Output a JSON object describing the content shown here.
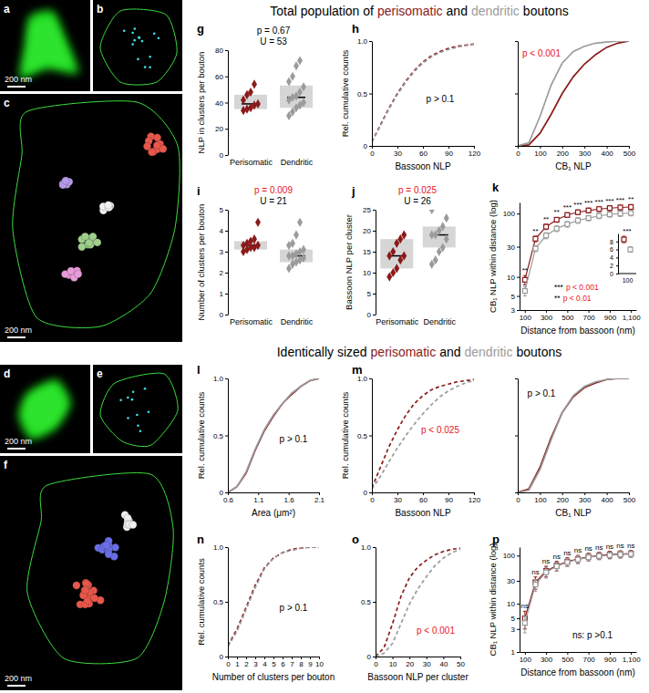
{
  "headings": [
    {
      "segments": [
        {
          "text": "Total population of",
          "color": "#000000"
        },
        {
          "text": "perisomatic",
          "color": "#8b1a1a"
        },
        {
          "text": "and",
          "color": "#000000"
        },
        {
          "text": "dendritic",
          "color": "#9b9b9b"
        },
        {
          "text": "boutons",
          "color": "#000000"
        }
      ]
    },
    {
      "segments": [
        {
          "text": "Identically sized",
          "color": "#000000"
        },
        {
          "text": "perisomatic",
          "color": "#8b1a1a"
        },
        {
          "text": "and",
          "color": "#000000"
        },
        {
          "text": "dendritic",
          "color": "#9b9b9b"
        },
        {
          "text": "boutons",
          "color": "#000000"
        }
      ]
    }
  ],
  "images": [
    {
      "panel_label": "a",
      "scale_bar": "200 nm"
    },
    {
      "panel_label": "b"
    },
    {
      "panel_label": "c",
      "scale_bar": "200 nm"
    },
    {
      "panel_label": "d",
      "scale_bar": "200 nm"
    },
    {
      "panel_label": "e"
    },
    {
      "panel_label": "f",
      "scale_bar": "200 nm"
    }
  ],
  "chart_data": [
    {
      "type": "strip",
      "panel_label": "g",
      "y_label": "NLP in clusters per bouton",
      "categories": [
        "Perisomatic",
        "Dendritic"
      ],
      "colors": [
        "#8b1a1a",
        "#9b9b9b"
      ],
      "values": [
        [
          34,
          35,
          36,
          38,
          39,
          42,
          46,
          48,
          54
        ],
        [
          30,
          33,
          36,
          38,
          40,
          42,
          44,
          45,
          48,
          52,
          56,
          60,
          68,
          72
        ]
      ],
      "medians": [
        39,
        44
      ],
      "iqr": [
        [
          35,
          46
        ],
        [
          36,
          53
        ]
      ],
      "ylim": [
        0,
        80
      ],
      "yticks": [
        0,
        20,
        40,
        60,
        80
      ],
      "annotations": [
        {
          "text": "p = 0.67",
          "color": "#000000"
        },
        {
          "text": "U = 53",
          "color": "#000000"
        }
      ]
    },
    {
      "type": "line",
      "panel_label": "h",
      "x_label": "Bassoon NLP",
      "y_label": "Rel. cumulative counts",
      "x": [
        0,
        10,
        20,
        30,
        40,
        50,
        60,
        70,
        80,
        90,
        100,
        110,
        120
      ],
      "xlim": [
        0,
        120
      ],
      "xticks": [
        0,
        30,
        60,
        90,
        120
      ],
      "ylim": [
        0,
        1
      ],
      "yticks": [
        0,
        0.5,
        {
          "value": 1,
          "label": "1.0"
        }
      ],
      "series": [
        {
          "color": "#8b1a1a",
          "line_style": "dashed",
          "values": [
            0.04,
            0.2,
            0.36,
            0.5,
            0.62,
            0.72,
            0.8,
            0.86,
            0.9,
            0.93,
            0.95,
            0.96,
            0.97
          ]
        },
        {
          "color": "#9b9b9b",
          "line_style": "dashed",
          "values": [
            0.04,
            0.19,
            0.35,
            0.49,
            0.61,
            0.71,
            0.79,
            0.85,
            0.89,
            0.92,
            0.94,
            0.96,
            0.97
          ]
        }
      ],
      "annotations": [
        {
          "text": "p > 0.1",
          "color": "#000000"
        }
      ]
    },
    {
      "type": "line",
      "x_label": "CB₁ NLP",
      "tick_labels": "x",
      "x": [
        0,
        50,
        100,
        150,
        200,
        250,
        300,
        350,
        400,
        450,
        500
      ],
      "xlim": [
        0,
        500
      ],
      "xticks": [
        0,
        100,
        200,
        300,
        400,
        500
      ],
      "ylim": [
        0,
        1
      ],
      "yticks": [
        0,
        0.5,
        {
          "value": 1,
          "label": "1.0"
        }
      ],
      "series": [
        {
          "color": "#8b1a1a",
          "line_style": "solid",
          "values": [
            0,
            0.01,
            0.12,
            0.3,
            0.5,
            0.66,
            0.78,
            0.87,
            0.94,
            0.98,
            1
          ]
        },
        {
          "color": "#9b9b9b",
          "line_style": "solid",
          "values": [
            0,
            0.03,
            0.28,
            0.58,
            0.79,
            0.9,
            0.95,
            0.98,
            0.99,
            1,
            1
          ]
        }
      ],
      "annotations": [
        {
          "text": "p < 0.001",
          "color": "#e8141c"
        }
      ]
    },
    {
      "type": "strip",
      "panel_label": "i",
      "y_label": "Number of clusters per bouton",
      "categories": [
        "Perisomatic",
        "Dendritic"
      ],
      "colors": [
        "#8b1a1a",
        "#9b9b9b"
      ],
      "values": [
        [
          3.0,
          3.1,
          3.2,
          3.2,
          3.3,
          3.3,
          3.4,
          3.5,
          3.6,
          4.4
        ],
        [
          2.2,
          2.4,
          2.5,
          2.6,
          2.7,
          2.8,
          2.8,
          2.9,
          3.0,
          3.1,
          3.3,
          3.4,
          3.8,
          4.4
        ]
      ],
      "medians": [
        3.3,
        2.8
      ],
      "iqr": [
        [
          3.1,
          3.5
        ],
        [
          2.5,
          3.1
        ]
      ],
      "ylim": [
        0,
        5
      ],
      "yticks": [
        0,
        1,
        2,
        3,
        4,
        5
      ],
      "annotations": [
        {
          "text": "p = 0.009",
          "color": "#e8141c"
        },
        {
          "text": "U = 21",
          "color": "#000000"
        }
      ]
    },
    {
      "type": "strip",
      "panel_label": "j",
      "y_label": "Bassoon NLP per cluster",
      "categories": [
        "Perisomatic",
        "Dendritic"
      ],
      "colors": [
        "#8b1a1a",
        "#9b9b9b"
      ],
      "values": [
        [
          9,
          10,
          11,
          13,
          14,
          14,
          15,
          17,
          18,
          19
        ],
        [
          12,
          13,
          15,
          16,
          18,
          19,
          19,
          20,
          21,
          23,
          25
        ]
      ],
      "medians": [
        14,
        19
      ],
      "iqr": [
        [
          11,
          18
        ],
        [
          16,
          21
        ]
      ],
      "ylim": [
        0,
        25
      ],
      "yticks": [
        0,
        5,
        10,
        15,
        20,
        25
      ],
      "annotations": [
        {
          "text": "p = 0.025",
          "color": "#e8141c"
        },
        {
          "text": "U = 26",
          "color": "#000000"
        }
      ]
    },
    {
      "type": "line",
      "panel_label": "k",
      "log": "y",
      "x_label": "Distance from bassoon (nm)",
      "y_label": "CB₁ NLP within distance (log)",
      "x": [
        100,
        200,
        300,
        400,
        500,
        600,
        700,
        800,
        900,
        1000,
        1100
      ],
      "xlim": [
        50,
        1150
      ],
      "xticks": [
        100,
        300,
        500,
        700,
        900,
        {
          "value": 1100,
          "label": "1,100"
        }
      ],
      "ylim": [
        3,
        150
      ],
      "yticks": [
        3,
        5,
        10,
        30,
        100
      ],
      "series": [
        {
          "color": "#8b1a1a",
          "marker": "square",
          "line_style": "solid",
          "values": [
            9,
            40,
            62,
            80,
            95,
            105,
            112,
            118,
            122,
            125,
            127
          ],
          "errors": [
            1.5,
            4,
            6,
            7,
            8,
            9,
            10,
            10,
            11,
            11,
            12
          ]
        },
        {
          "color": "#9b9b9b",
          "marker": "square",
          "line_style": "solid",
          "values": [
            6,
            28,
            45,
            58,
            68,
            78,
            85,
            92,
            97,
            100,
            102
          ],
          "errors": [
            1,
            3,
            5,
            6,
            7,
            8,
            8,
            9,
            9,
            10,
            10
          ]
        }
      ],
      "significance": [
        "**",
        "**",
        "**",
        "**",
        "***",
        "***",
        "***",
        "***",
        "***",
        "***",
        "**"
      ],
      "significance_key": [
        {
          "stars": "***",
          "text": "p < 0.001",
          "color": "#e8141c"
        },
        {
          "stars": "**",
          "text": "p < 0.01",
          "color": "#e8141c"
        }
      ]
    },
    {
      "type": "errorbar",
      "categories": [
        "100"
      ],
      "ylim": [
        0,
        10
      ],
      "yticks": [
        0,
        2,
        4,
        6,
        8
      ],
      "series": [
        {
          "color": "#8b1a1a",
          "marker": "square",
          "values": [
            8.5
          ],
          "errors": [
            0.8
          ]
        },
        {
          "color": "#9b9b9b",
          "marker": "square",
          "values": [
            6
          ],
          "errors": [
            0.7
          ]
        }
      ],
      "significance": [
        "***"
      ]
    },
    {
      "type": "line",
      "panel_label": "l",
      "x_label": "Area (μm²)",
      "y_label": "Rel. cumulative counts",
      "x": [
        0.6,
        0.75,
        0.9,
        1.05,
        1.2,
        1.35,
        1.5,
        1.65,
        1.8,
        1.95,
        2.1
      ],
      "xlim": [
        0.6,
        2.1
      ],
      "xticks": [
        0.6,
        1.1,
        1.6,
        2.1
      ],
      "ylim": [
        0,
        1
      ],
      "yticks": [
        0,
        0.5,
        {
          "value": 1,
          "label": "1.0"
        }
      ],
      "series": [
        {
          "color": "#8b1a1a",
          "line_style": "solid",
          "values": [
            0,
            0.05,
            0.17,
            0.37,
            0.54,
            0.67,
            0.78,
            0.86,
            0.93,
            0.98,
            1
          ]
        },
        {
          "color": "#9b9b9b",
          "line_style": "solid",
          "values": [
            0,
            0.05,
            0.18,
            0.38,
            0.55,
            0.68,
            0.78,
            0.87,
            0.93,
            0.98,
            1
          ]
        }
      ],
      "annotations": [
        {
          "text": "p > 0.1",
          "color": "#000000"
        }
      ]
    },
    {
      "type": "line",
      "panel_label": "m",
      "x_label": "Bassoon NLP",
      "y_label": "Rel. cumulative counts",
      "x": [
        0,
        10,
        20,
        30,
        40,
        50,
        60,
        70,
        80,
        90,
        100,
        110,
        120
      ],
      "xlim": [
        0,
        120
      ],
      "xticks": [
        0,
        30,
        60,
        90,
        120
      ],
      "ylim": [
        0,
        1
      ],
      "yticks": [
        0,
        0.5,
        {
          "value": 1,
          "label": "1.0"
        }
      ],
      "series": [
        {
          "color": "#8b1a1a",
          "line_style": "dashed",
          "values": [
            0.04,
            0.22,
            0.4,
            0.55,
            0.68,
            0.78,
            0.85,
            0.9,
            0.93,
            0.95,
            0.97,
            0.98,
            0.99
          ]
        },
        {
          "color": "#9b9b9b",
          "line_style": "dashed",
          "values": [
            0.03,
            0.14,
            0.27,
            0.39,
            0.5,
            0.6,
            0.69,
            0.77,
            0.84,
            0.89,
            0.93,
            0.96,
            0.98
          ]
        }
      ],
      "annotations": [
        {
          "text": "p < 0.025",
          "color": "#e8141c"
        }
      ]
    },
    {
      "type": "line",
      "x_label": "CB₁ NLP",
      "tick_labels": "x",
      "x": [
        0,
        50,
        100,
        150,
        200,
        250,
        300,
        350,
        400,
        450,
        500
      ],
      "xlim": [
        0,
        500
      ],
      "xticks": [
        0,
        100,
        200,
        300,
        400,
        500
      ],
      "ylim": [
        0,
        1
      ],
      "yticks": [
        0,
        0.5,
        {
          "value": 1,
          "label": "1.0"
        }
      ],
      "series": [
        {
          "color": "#8b1a1a",
          "line_style": "solid",
          "values": [
            0,
            0.03,
            0.22,
            0.48,
            0.7,
            0.84,
            0.92,
            0.96,
            0.99,
            1,
            1
          ]
        },
        {
          "color": "#9b9b9b",
          "line_style": "solid",
          "values": [
            0,
            0.02,
            0.2,
            0.46,
            0.7,
            0.85,
            0.93,
            0.97,
            0.99,
            1,
            1
          ]
        }
      ],
      "annotations": [
        {
          "text": "p > 0.1",
          "color": "#000000"
        }
      ]
    },
    {
      "type": "line",
      "panel_label": "n",
      "x_label": "Number of clusters per bouton",
      "y_label": "Rel. cumulative counts",
      "x": [
        0,
        1,
        2,
        3,
        4,
        5,
        6,
        7,
        8,
        9,
        10
      ],
      "xlim": [
        0,
        10
      ],
      "xticks": [
        0,
        1,
        2,
        3,
        4,
        5,
        6,
        7,
        8,
        9,
        10
      ],
      "ylim": [
        0,
        1
      ],
      "yticks": [
        0,
        0.5,
        {
          "value": 1,
          "label": "1.0"
        }
      ],
      "series": [
        {
          "color": "#8b1a1a",
          "line_style": "dashed",
          "values": [
            0.1,
            0.25,
            0.45,
            0.65,
            0.81,
            0.9,
            0.95,
            0.98,
            0.99,
            1,
            1
          ]
        },
        {
          "color": "#9b9b9b",
          "line_style": "dashed",
          "values": [
            0.09,
            0.23,
            0.43,
            0.63,
            0.8,
            0.9,
            0.95,
            0.97,
            0.99,
            1,
            1
          ]
        }
      ],
      "annotations": [
        {
          "text": "p > 0.1",
          "color": "#000000"
        }
      ]
    },
    {
      "type": "line",
      "panel_label": "o",
      "x_label": "Bassoon NLP per cluster",
      "x": [
        0,
        5,
        10,
        15,
        20,
        25,
        30,
        35,
        40,
        45,
        50
      ],
      "xlim": [
        0,
        50
      ],
      "xticks": [
        0,
        10,
        20,
        30,
        40,
        50
      ],
      "ylim": [
        0,
        1
      ],
      "yticks": [
        0,
        0.5,
        {
          "value": 1,
          "label": "1.0"
        }
      ],
      "series": [
        {
          "color": "#8b1a1a",
          "line_style": "dashed",
          "values": [
            0,
            0.08,
            0.3,
            0.55,
            0.72,
            0.82,
            0.88,
            0.93,
            0.96,
            0.98,
            0.99
          ]
        },
        {
          "color": "#9b9b9b",
          "line_style": "dashed",
          "values": [
            0,
            0.03,
            0.12,
            0.3,
            0.48,
            0.62,
            0.73,
            0.83,
            0.9,
            0.95,
            0.98
          ]
        }
      ],
      "annotations": [
        {
          "text": "p < 0.001",
          "color": "#e8141c"
        }
      ]
    },
    {
      "type": "line",
      "panel_label": "p",
      "log": "y",
      "x_label": "Distance from bassoon (nm)",
      "y_label": "CB₁ NLP within distance (log)",
      "x": [
        100,
        200,
        300,
        400,
        500,
        600,
        700,
        800,
        900,
        1000,
        1100
      ],
      "xlim": [
        50,
        1150
      ],
      "xticks": [
        100,
        300,
        500,
        700,
        900,
        {
          "value": 1100,
          "label": "1,100"
        }
      ],
      "ylim": [
        1,
        150
      ],
      "yticks": [
        1,
        3,
        5,
        10,
        30,
        100
      ],
      "series": [
        {
          "color": "#8b1a1a",
          "marker": "square",
          "line_style": "solid",
          "values": [
            5,
            28,
            48,
            62,
            75,
            85,
            95,
            100,
            105,
            108,
            110
          ],
          "errors": [
            2,
            8,
            12,
            14,
            15,
            16,
            17,
            17,
            18,
            18,
            18
          ]
        },
        {
          "color": "#9b9b9b",
          "marker": "square",
          "line_style": "solid",
          "values": [
            4,
            25,
            45,
            60,
            73,
            83,
            92,
            98,
            102,
            105,
            108
          ],
          "errors": [
            1.5,
            7,
            11,
            13,
            14,
            15,
            16,
            16,
            17,
            17,
            17
          ]
        }
      ],
      "significance": [
        "ns",
        "ns",
        "ns",
        "ns",
        "ns",
        "ns",
        "ns",
        "ns",
        "ns",
        "ns",
        "ns"
      ],
      "annotations": [
        {
          "text": "ns: p >0.1",
          "color": "#000000"
        }
      ]
    }
  ]
}
